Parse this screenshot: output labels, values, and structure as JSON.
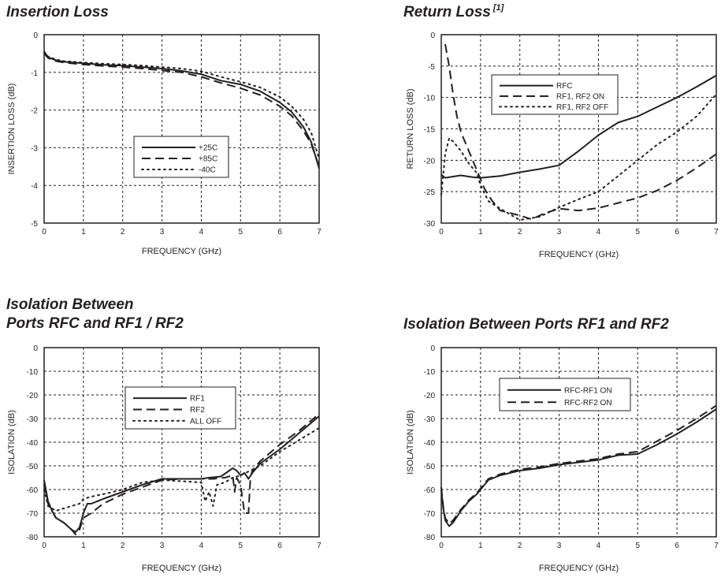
{
  "chart_data": [
    {
      "id": "insertion-loss",
      "type": "line",
      "title": "Insertion Loss",
      "xlabel": "FREQUENCY (GHz)",
      "ylabel": "INSERTION LOSS  (dB)",
      "xlim": [
        0,
        7
      ],
      "ylim": [
        -5,
        0
      ],
      "xticks": [
        0,
        1,
        2,
        3,
        4,
        5,
        6,
        7
      ],
      "yticks": [
        0,
        -1,
        -2,
        -3,
        -4,
        -5
      ],
      "grid": true,
      "legend_position": "bottom-center",
      "series": [
        {
          "name": "+25C",
          "style": "solid",
          "x": [
            0,
            0.1,
            0.3,
            0.5,
            1,
            1.5,
            2,
            2.5,
            3,
            3.5,
            4,
            4.5,
            5,
            5.5,
            6,
            6.3,
            6.6,
            6.8,
            7
          ],
          "y": [
            -0.45,
            -0.6,
            -0.68,
            -0.72,
            -0.76,
            -0.8,
            -0.82,
            -0.86,
            -0.9,
            -0.96,
            -1.05,
            -1.22,
            -1.32,
            -1.5,
            -1.8,
            -2.05,
            -2.45,
            -2.85,
            -3.55
          ]
        },
        {
          "name": "+85C",
          "style": "dashed",
          "x": [
            0,
            0.1,
            0.3,
            0.5,
            1,
            1.5,
            2,
            2.5,
            3,
            3.5,
            4,
            4.5,
            5,
            5.5,
            6,
            6.3,
            6.6,
            6.8,
            7
          ],
          "y": [
            -0.5,
            -0.62,
            -0.7,
            -0.74,
            -0.79,
            -0.83,
            -0.86,
            -0.9,
            -0.95,
            -1.0,
            -1.12,
            -1.28,
            -1.42,
            -1.6,
            -1.9,
            -2.15,
            -2.55,
            -2.9,
            -3.5
          ]
        },
        {
          "name": "-40C",
          "style": "dotted",
          "x": [
            0,
            0.1,
            0.3,
            0.5,
            1,
            1.5,
            2,
            2.5,
            3,
            3.5,
            4,
            4.5,
            5,
            5.5,
            6,
            6.3,
            6.6,
            6.8,
            7
          ],
          "y": [
            -0.45,
            -0.58,
            -0.66,
            -0.7,
            -0.74,
            -0.77,
            -0.79,
            -0.82,
            -0.86,
            -0.9,
            -0.97,
            -1.12,
            -1.25,
            -1.4,
            -1.65,
            -1.9,
            -2.25,
            -2.6,
            -3.3
          ]
        }
      ]
    },
    {
      "id": "return-loss",
      "type": "line",
      "title": "Return Loss",
      "title_note": "[1]",
      "xlabel": "FREQUENCY (GHz)",
      "ylabel": "RETURN LOSS (dB)",
      "xlim": [
        0,
        7
      ],
      "ylim": [
        -30,
        0
      ],
      "xticks": [
        0,
        1,
        2,
        3,
        4,
        5,
        6,
        7
      ],
      "yticks": [
        0,
        -5,
        -10,
        -15,
        -20,
        -25,
        -30
      ],
      "grid": true,
      "legend_position": "top-left",
      "series": [
        {
          "name": "RFC",
          "style": "solid",
          "x": [
            0,
            0.1,
            0.3,
            0.5,
            0.8,
            1.0,
            1.5,
            2.0,
            2.5,
            3.0,
            3.5,
            4.0,
            4.5,
            5.0,
            5.5,
            6.0,
            6.5,
            7.0
          ],
          "y": [
            -22.3,
            -22.8,
            -22.6,
            -22.4,
            -22.7,
            -22.8,
            -22.5,
            -21.9,
            -21.4,
            -20.8,
            -18.5,
            -16.0,
            -14.0,
            -13.0,
            -11.5,
            -10.0,
            -8.3,
            -6.5
          ]
        },
        {
          "name": "RF1, RF2 ON",
          "style": "dashed",
          "x": [
            0.1,
            0.2,
            0.3,
            0.4,
            0.5,
            0.7,
            0.9,
            1.1,
            1.3,
            1.5,
            2.0,
            2.3,
            2.6,
            3.0,
            3.5,
            4.0,
            4.5,
            5.0,
            5.5,
            6.0,
            6.5,
            7.0
          ],
          "y": [
            -1.5,
            -5.0,
            -9.5,
            -13.0,
            -15.5,
            -18.5,
            -21.5,
            -24.5,
            -26.5,
            -28.0,
            -28.8,
            -29.4,
            -28.5,
            -27.7,
            -28.0,
            -27.6,
            -26.8,
            -26.0,
            -24.8,
            -23.2,
            -21.2,
            -19.0
          ]
        },
        {
          "name": "RF1, RF2 OFF",
          "style": "dotted",
          "x": [
            0,
            0.1,
            0.2,
            0.3,
            0.5,
            0.7,
            0.9,
            1.0,
            1.2,
            1.5,
            1.8,
            2.0,
            2.5,
            3.0,
            3.5,
            4.0,
            4.5,
            5.0,
            5.5,
            6.0,
            6.5,
            7.0
          ],
          "y": [
            -25.5,
            -19.0,
            -16.5,
            -17.0,
            -18.5,
            -20.5,
            -22.0,
            -24.0,
            -26.5,
            -27.7,
            -28.8,
            -29.5,
            -29.0,
            -27.5,
            -26.2,
            -25.0,
            -22.5,
            -20.0,
            -17.5,
            -15.5,
            -13.0,
            -9.5
          ]
        }
      ]
    },
    {
      "id": "isolation-rfc-rf",
      "type": "line",
      "title_line1": "Isolation Between",
      "title_line2": "Ports RFC and RF1 / RF2",
      "xlabel": "FREQUENCY (GHz)",
      "ylabel": "ISOLATION (dB)",
      "xlim": [
        0,
        7
      ],
      "ylim": [
        -80,
        0
      ],
      "xticks": [
        0,
        1,
        2,
        3,
        4,
        5,
        6,
        7
      ],
      "yticks": [
        0,
        -10,
        -20,
        -30,
        -40,
        -50,
        -60,
        -70,
        -80
      ],
      "grid": true,
      "legend_position": "top-right",
      "series": [
        {
          "name": "RF1",
          "style": "solid",
          "x": [
            0,
            0.1,
            0.2,
            0.3,
            0.5,
            0.7,
            0.8,
            0.9,
            1.0,
            1.1,
            1.2,
            1.5,
            2.0,
            2.5,
            3.0,
            3.5,
            4.0,
            4.2,
            4.5,
            4.8,
            4.9,
            5.0,
            5.1,
            5.2,
            5.3,
            5.5,
            6.0,
            6.5,
            7.0
          ],
          "y": [
            -56,
            -65,
            -69,
            -72,
            -74,
            -77,
            -78,
            -76,
            -70,
            -66,
            -66,
            -64,
            -61,
            -58,
            -55.5,
            -55.5,
            -55.5,
            -55,
            -54.5,
            -51,
            -52,
            -54,
            -53,
            -55.5,
            -53,
            -49,
            -43,
            -36,
            -29
          ]
        },
        {
          "name": "RF2",
          "style": "dashed",
          "x": [
            0,
            0.1,
            0.3,
            0.5,
            0.7,
            0.8,
            0.9,
            1.0,
            1.2,
            1.5,
            2.0,
            2.5,
            3.0,
            3.5,
            4.0,
            4.3,
            4.6,
            4.8,
            4.85,
            4.9,
            5.0,
            5.1,
            5.2,
            5.25,
            5.3,
            5.5,
            6.0,
            6.5,
            7.0
          ],
          "y": [
            -58,
            -66,
            -72,
            -74,
            -77,
            -79,
            -77,
            -72,
            -70,
            -66,
            -62,
            -59,
            -56,
            -55.5,
            -55.5,
            -55.5,
            -55,
            -54,
            -61,
            -55,
            -58,
            -70,
            -70,
            -55,
            -52,
            -48,
            -41,
            -35,
            -28
          ]
        },
        {
          "name": "ALL OFF",
          "style": "dotted",
          "x": [
            0,
            0.1,
            0.3,
            0.5,
            0.7,
            0.9,
            1.0,
            1.2,
            1.5,
            2.0,
            2.5,
            3.0,
            3.5,
            4.0,
            4.1,
            4.2,
            4.3,
            4.4,
            4.6,
            4.8,
            5.0,
            5.5,
            6.0,
            6.5,
            7.0
          ],
          "y": [
            -60,
            -67,
            -69,
            -68,
            -67,
            -66,
            -64,
            -63,
            -62,
            -60,
            -57,
            -56,
            -56.5,
            -57,
            -65,
            -61,
            -67,
            -58,
            -57,
            -55,
            -54,
            -50,
            -44,
            -39,
            -34
          ]
        }
      ]
    },
    {
      "id": "isolation-rf1-rf2",
      "type": "line",
      "title": "Isolation Between Ports RF1 and RF2",
      "xlabel": "FREQUENCY (GHz)",
      "ylabel": "ISOLATION (dB)",
      "xlim": [
        0,
        7
      ],
      "ylim": [
        -80,
        0
      ],
      "xticks": [
        0,
        1,
        2,
        3,
        4,
        5,
        6,
        7
      ],
      "yticks": [
        0,
        -10,
        -20,
        -30,
        -40,
        -50,
        -60,
        -70,
        -80
      ],
      "grid": true,
      "legend_position": "top-right",
      "series": [
        {
          "name": "RFC-RF1 ON",
          "style": "solid",
          "x": [
            0,
            0.05,
            0.1,
            0.2,
            0.3,
            0.5,
            0.7,
            0.9,
            1.0,
            1.2,
            1.5,
            2.0,
            2.5,
            3.0,
            3.5,
            4.0,
            4.5,
            5.0,
            5.5,
            6.0,
            6.5,
            7.0
          ],
          "y": [
            -60,
            -68,
            -73,
            -75.5,
            -74,
            -69,
            -65,
            -62,
            -60,
            -56,
            -54,
            -52,
            -51,
            -49.5,
            -48.5,
            -47.5,
            -45.5,
            -45,
            -41,
            -36.5,
            -31.5,
            -26
          ]
        },
        {
          "name": "RFC-RF2 ON",
          "style": "dashed",
          "x": [
            0,
            0.05,
            0.1,
            0.2,
            0.3,
            0.5,
            0.7,
            0.9,
            1.0,
            1.2,
            1.5,
            2.0,
            2.5,
            3.0,
            3.5,
            4.0,
            4.5,
            5.0,
            5.5,
            6.0,
            6.5,
            7.0
          ],
          "y": [
            -59,
            -67,
            -72,
            -74.5,
            -73,
            -68.5,
            -64.5,
            -61.5,
            -59.5,
            -55.5,
            -53.5,
            -51.5,
            -50.5,
            -49,
            -48,
            -47,
            -45,
            -44,
            -39.5,
            -35,
            -30,
            -24.5
          ]
        }
      ]
    }
  ]
}
